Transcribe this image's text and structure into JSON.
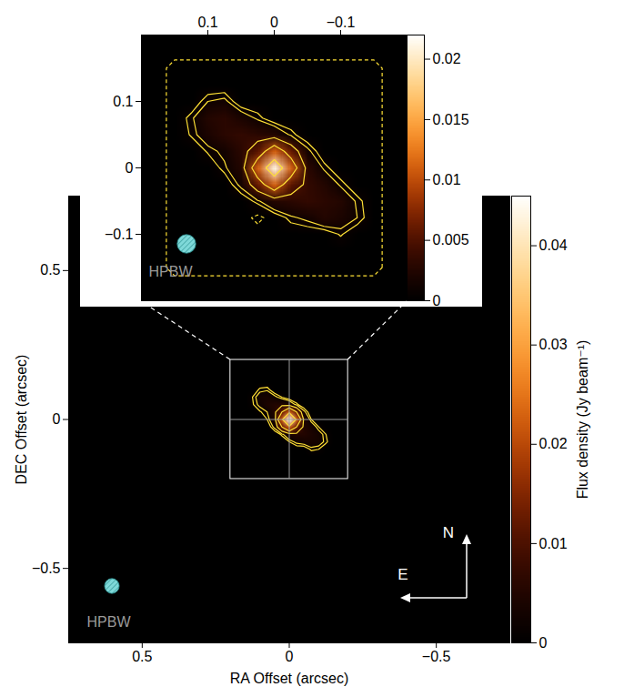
{
  "chart_data": [
    {
      "type": "heatmap",
      "x_label": "RA Offset (arcsec)",
      "y_label": "DEC Offset (arcsec)",
      "xlim": [
        0.75,
        -0.75
      ],
      "ylim": [
        -0.75,
        0.75
      ],
      "xticks": [
        0.5,
        0,
        -0.5
      ],
      "yticks": [
        -0.5,
        0,
        0.5
      ],
      "image": {
        "x_extent": [
          0.1625,
          -0.1625
        ],
        "y_extent": [
          0.1625,
          -0.1625
        ],
        "width": 13,
        "height": 13,
        "values": [
          [
            0,
            0,
            0,
            0,
            0,
            0,
            0,
            0,
            0,
            0,
            0,
            0,
            0
          ],
          [
            0,
            0,
            0,
            0,
            0,
            0,
            0,
            0,
            0,
            0,
            0,
            0,
            0
          ],
          [
            0,
            0,
            0.0015,
            0.0018,
            0,
            0,
            0,
            0,
            0,
            0,
            0,
            0,
            0
          ],
          [
            0,
            0.0012,
            0.003,
            0.0035,
            0.0025,
            0.0012,
            0,
            0,
            0,
            0,
            0,
            0,
            0
          ],
          [
            0,
            0.001,
            0.0025,
            0.004,
            0.005,
            0.005,
            0.004,
            0.0015,
            0,
            0,
            0,
            0,
            0
          ],
          [
            0,
            0,
            0.001,
            0.002,
            0.005,
            0.012,
            0.022,
            0.012,
            0.0025,
            0,
            0,
            0,
            0
          ],
          [
            0,
            0,
            0,
            0.0012,
            0.004,
            0.022,
            0.044,
            0.022,
            0.005,
            0.0012,
            0,
            0,
            0
          ],
          [
            0,
            0,
            0,
            0,
            0.0025,
            0.012,
            0.022,
            0.012,
            0.005,
            0.0035,
            0.0012,
            0,
            0
          ],
          [
            0,
            0,
            0,
            0,
            0,
            0.0015,
            0.004,
            0.005,
            0.005,
            0.004,
            0.003,
            0.0012,
            0
          ],
          [
            0,
            0,
            0,
            0,
            0,
            0,
            0.0012,
            0.0025,
            0.003,
            0.0035,
            0.003,
            0.0015,
            0
          ],
          [
            0,
            0,
            0,
            0,
            0,
            0,
            0,
            0,
            0,
            0.0015,
            0.0012,
            0,
            0
          ],
          [
            0,
            0,
            0,
            0,
            0,
            0,
            0,
            0,
            0,
            0,
            0,
            0,
            0
          ],
          [
            0,
            0,
            0,
            0,
            0,
            0,
            0,
            0,
            0,
            0,
            0,
            0,
            0
          ]
        ]
      },
      "contour_levels": [
        0.0012,
        0.002,
        0.006,
        0.012,
        0.024
      ],
      "color": "#ffe135",
      "colorbar": {
        "label": "Flux density (Jy beam⁻¹)",
        "range": [
          0,
          0.045
        ],
        "ticks": [
          0,
          0.01,
          0.02,
          0.03,
          0.04
        ]
      },
      "beam": {
        "label": "HPBW",
        "size": 0.05
      },
      "compass": {
        "north": "N",
        "east": "E"
      }
    },
    {
      "type": "heatmap",
      "xlim": [
        0.2,
        -0.2
      ],
      "ylim": [
        -0.2,
        0.2
      ],
      "xticks": [
        0.1,
        0,
        -0.1
      ],
      "yticks": [
        -0.1,
        0,
        0.1
      ],
      "image": {
        "x_extent": [
          0.1625,
          -0.1625
        ],
        "y_extent": [
          0.1625,
          -0.1625
        ],
        "width": 13,
        "height": 13,
        "values": [
          [
            0,
            0,
            0,
            0,
            0,
            0,
            0,
            0,
            0,
            0,
            0,
            0,
            0
          ],
          [
            0,
            0,
            0,
            0,
            0,
            0,
            0,
            0,
            0,
            0,
            0,
            0,
            0
          ],
          [
            0,
            0,
            0.0012,
            0.0015,
            0,
            0,
            0,
            0,
            0,
            0,
            0,
            0,
            0
          ],
          [
            0,
            0.001,
            0.0025,
            0.003,
            0.002,
            0.001,
            0,
            0,
            0,
            0,
            0,
            0,
            0
          ],
          [
            0,
            0.0008,
            0.002,
            0.003,
            0.0035,
            0.003,
            0.0025,
            0.001,
            0,
            0,
            0,
            0,
            0
          ],
          [
            0,
            0,
            0.0008,
            0.0015,
            0.003,
            0.0055,
            0.011,
            0.006,
            0.0015,
            0,
            0,
            0,
            0
          ],
          [
            0,
            0,
            0,
            0.001,
            0.0025,
            0.011,
            0.021,
            0.011,
            0.003,
            0.001,
            0,
            0,
            0
          ],
          [
            0,
            0,
            0,
            0,
            0.0015,
            0.006,
            0.011,
            0.0055,
            0.0035,
            0.0025,
            0.001,
            0,
            0
          ],
          [
            0,
            0,
            0,
            0,
            0,
            0.001,
            0.0025,
            0.003,
            0.0035,
            0.003,
            0.0025,
            0.001,
            0
          ],
          [
            0,
            0,
            0,
            0,
            0,
            -0.0008,
            0,
            0.001,
            0.0015,
            0.0025,
            0.002,
            0.0012,
            0
          ],
          [
            0,
            0,
            0,
            0,
            0,
            0,
            0,
            0,
            0,
            0,
            0.0008,
            0,
            0
          ],
          [
            0,
            0,
            0,
            0,
            0,
            0,
            0,
            0,
            0,
            0,
            0,
            0,
            0
          ],
          [
            0,
            0,
            0,
            0,
            0,
            0,
            0,
            0,
            0,
            0,
            0,
            0,
            0
          ]
        ]
      },
      "contour_levels": [
        0.0007,
        0.0012,
        0.004,
        0.008,
        0.016,
        -0.0005
      ],
      "color": "#ffe135",
      "colorbar": {
        "range": [
          0,
          0.022
        ],
        "ticks": [
          0,
          0.005,
          0.01,
          0.015,
          0.02
        ]
      },
      "beam": {
        "label": "HPBW",
        "size": 0.028
      }
    }
  ]
}
